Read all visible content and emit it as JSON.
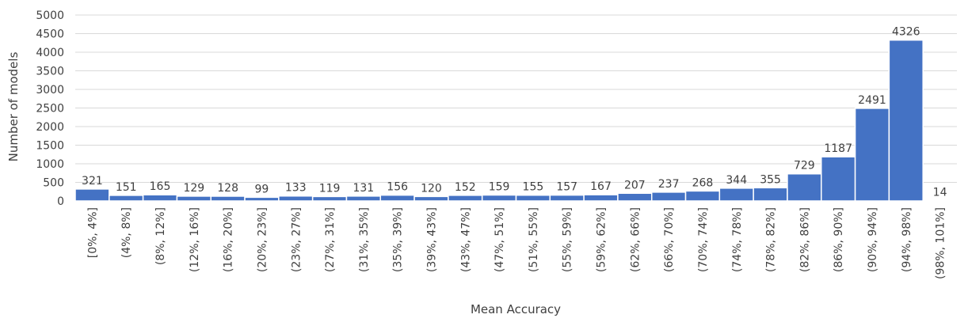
{
  "chart_data": {
    "type": "bar",
    "title": "",
    "xlabel": "Mean Accuracy",
    "ylabel": "Number of models",
    "ylim": [
      0,
      5000
    ],
    "yticks": [
      0,
      500,
      1000,
      1500,
      2000,
      2500,
      3000,
      3500,
      4000,
      4500,
      5000
    ],
    "grid": true,
    "legend": "none",
    "bar_color": "#4472c4",
    "categories": [
      "[0%, 4%]",
      "(4%, 8%]",
      "(8%, 12%]",
      "(12%, 16%]",
      "(16%, 20%]",
      "(20%, 23%]",
      "(23%, 27%]",
      "(27%, 31%]",
      "(31%, 35%]",
      "(35%, 39%]",
      "(39%, 43%]",
      "(43%, 47%]",
      "(47%, 51%]",
      "(51%, 55%]",
      "(55%, 59%]",
      "(59%, 62%]",
      "(62%, 66%]",
      "(66%, 70%]",
      "(70%, 74%]",
      "(74%, 78%]",
      "(78%, 82%]",
      "(82%, 86%]",
      "(86%, 90%]",
      "(90%, 94%]",
      "(94%, 98%]",
      "(98%, 101%]"
    ],
    "values": [
      321,
      151,
      165,
      129,
      128,
      99,
      133,
      119,
      131,
      156,
      120,
      152,
      159,
      155,
      157,
      167,
      207,
      237,
      268,
      344,
      355,
      729,
      1187,
      2491,
      4326,
      14
    ]
  }
}
